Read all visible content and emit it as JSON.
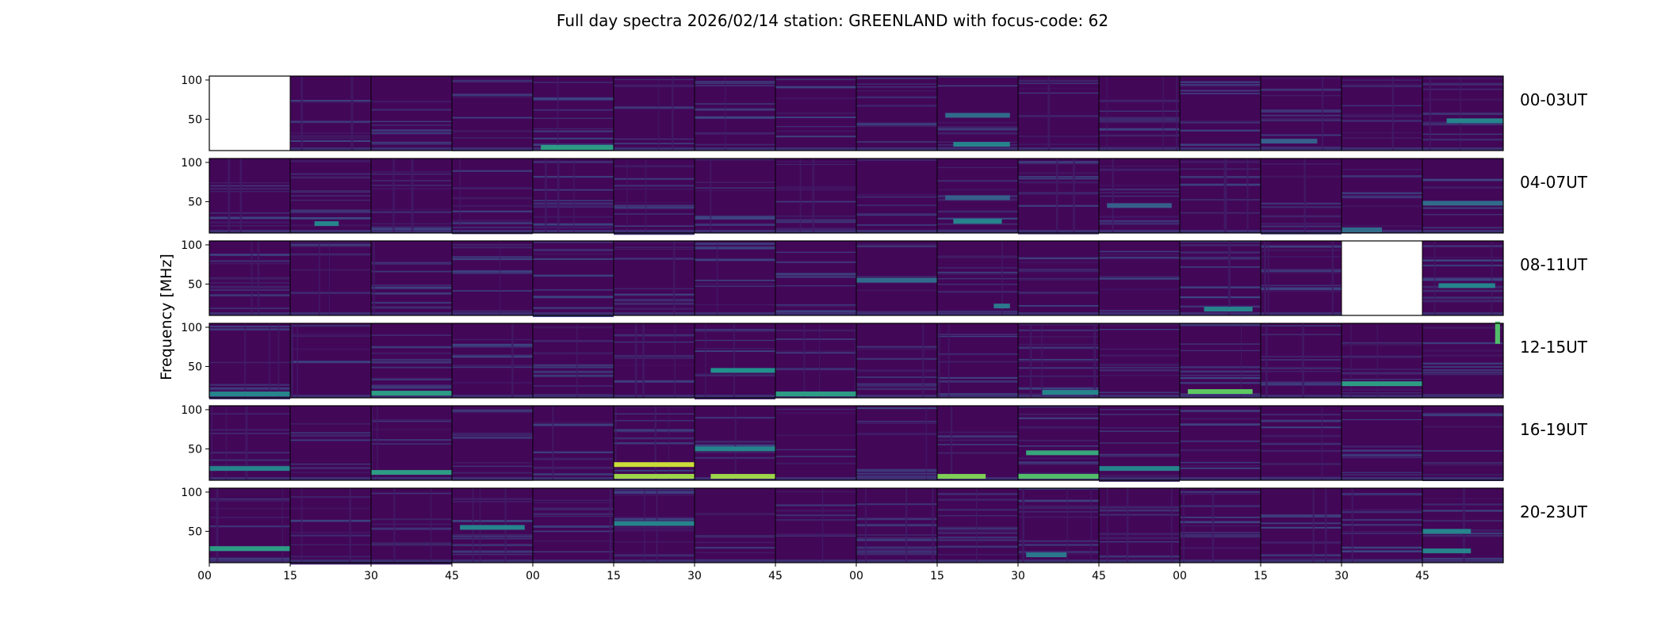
{
  "chart_data": {
    "type": "heatmap",
    "title": "Full day spectra 2026/02/14 station: GREENLAND with focus-code: 62",
    "ylabel": "Frequency [MHz]",
    "ylim": [
      10,
      105
    ],
    "yticks": [
      50,
      100
    ],
    "ytick_labels": [
      "50",
      "100"
    ],
    "xtick_labels": [
      "00",
      "15",
      "30",
      "45",
      "00",
      "15",
      "30",
      "45",
      "00",
      "15",
      "30",
      "45",
      "00",
      "15",
      "30",
      "45"
    ],
    "panels_per_row": 16,
    "minutes_per_panel": 15,
    "colormap": [
      "#440154",
      "#3b528b",
      "#21918c",
      "#5ec962",
      "#fde725"
    ],
    "rows": [
      {
        "label": "00-03UT",
        "empty_panels": [
          0
        ],
        "features": [
          {
            "panel": 4,
            "freq": 14,
            "intensity": 0.55,
            "span": [
              0.1,
              1.0
            ]
          },
          {
            "panel": 9,
            "freq": 18,
            "intensity": 0.45,
            "span": [
              0.2,
              0.9
            ]
          },
          {
            "panel": 9,
            "freq": 55,
            "intensity": 0.35,
            "span": [
              0.1,
              0.9
            ]
          },
          {
            "panel": 13,
            "freq": 22,
            "intensity": 0.3,
            "span": [
              0.0,
              0.7
            ]
          },
          {
            "panel": 15,
            "freq": 48,
            "intensity": 0.45,
            "span": [
              0.3,
              1.0
            ]
          }
        ]
      },
      {
        "label": "04-07UT",
        "empty_panels": [],
        "features": [
          {
            "panel": 1,
            "freq": 22,
            "intensity": 0.45,
            "span": [
              0.3,
              0.6
            ]
          },
          {
            "panel": 9,
            "freq": 25,
            "intensity": 0.45,
            "span": [
              0.2,
              0.8
            ]
          },
          {
            "panel": 9,
            "freq": 55,
            "intensity": 0.3,
            "span": [
              0.1,
              0.9
            ]
          },
          {
            "panel": 11,
            "freq": 45,
            "intensity": 0.3,
            "span": [
              0.1,
              0.9
            ]
          },
          {
            "panel": 15,
            "freq": 48,
            "intensity": 0.35,
            "span": [
              0.0,
              1.0
            ]
          },
          {
            "panel": 14,
            "freq": 14,
            "intensity": 0.35,
            "span": [
              0.0,
              0.5
            ]
          }
        ]
      },
      {
        "label": "08-11UT",
        "empty_panels": [
          14
        ],
        "features": [
          {
            "panel": 8,
            "freq": 55,
            "intensity": 0.35,
            "span": [
              0.0,
              1.0
            ]
          },
          {
            "panel": 9,
            "freq": 22,
            "intensity": 0.4,
            "span": [
              0.7,
              0.9
            ]
          },
          {
            "panel": 12,
            "freq": 18,
            "intensity": 0.45,
            "span": [
              0.3,
              0.9
            ]
          },
          {
            "panel": 15,
            "freq": 48,
            "intensity": 0.45,
            "span": [
              0.2,
              0.9
            ]
          }
        ]
      },
      {
        "label": "12-15UT",
        "empty_panels": [],
        "features": [
          {
            "panel": 0,
            "freq": 15,
            "intensity": 0.45,
            "span": [
              0.0,
              1.0
            ]
          },
          {
            "panel": 2,
            "freq": 16,
            "intensity": 0.55,
            "span": [
              0.0,
              1.0
            ]
          },
          {
            "panel": 6,
            "freq": 45,
            "intensity": 0.5,
            "span": [
              0.2,
              1.0
            ]
          },
          {
            "panel": 7,
            "freq": 15,
            "intensity": 0.55,
            "span": [
              0.0,
              1.0
            ]
          },
          {
            "panel": 10,
            "freq": 17,
            "intensity": 0.45,
            "span": [
              0.3,
              1.0
            ]
          },
          {
            "panel": 12,
            "freq": 18,
            "intensity": 0.75,
            "span": [
              0.1,
              0.9
            ]
          },
          {
            "panel": 14,
            "freq": 28,
            "intensity": 0.55,
            "span": [
              0.0,
              1.0
            ]
          },
          {
            "panel": 15,
            "freq": 85,
            "intensity": 0.7,
            "span": [
              0.9,
              0.96
            ]
          }
        ]
      },
      {
        "label": "16-19UT",
        "empty_panels": [],
        "features": [
          {
            "panel": 0,
            "freq": 25,
            "intensity": 0.45,
            "span": [
              0.0,
              1.0
            ]
          },
          {
            "panel": 2,
            "freq": 20,
            "intensity": 0.55,
            "span": [
              0.0,
              1.0
            ]
          },
          {
            "panel": 5,
            "freq": 30,
            "intensity": 0.92,
            "span": [
              0.0,
              1.0
            ]
          },
          {
            "panel": 5,
            "freq": 15,
            "intensity": 0.85,
            "span": [
              0.0,
              1.0
            ]
          },
          {
            "panel": 6,
            "freq": 15,
            "intensity": 0.85,
            "span": [
              0.2,
              1.0
            ]
          },
          {
            "panel": 6,
            "freq": 50,
            "intensity": 0.45,
            "span": [
              0.0,
              1.0
            ]
          },
          {
            "panel": 9,
            "freq": 15,
            "intensity": 0.8,
            "span": [
              0.0,
              0.6
            ]
          },
          {
            "panel": 10,
            "freq": 45,
            "intensity": 0.6,
            "span": [
              0.1,
              1.0
            ]
          },
          {
            "panel": 10,
            "freq": 15,
            "intensity": 0.7,
            "span": [
              0.0,
              1.0
            ]
          },
          {
            "panel": 11,
            "freq": 25,
            "intensity": 0.45,
            "span": [
              0.0,
              1.0
            ]
          }
        ]
      },
      {
        "label": "20-23UT",
        "empty_panels": [],
        "features": [
          {
            "panel": 0,
            "freq": 28,
            "intensity": 0.55,
            "span": [
              0.0,
              1.0
            ]
          },
          {
            "panel": 3,
            "freq": 55,
            "intensity": 0.45,
            "span": [
              0.1,
              0.9
            ]
          },
          {
            "panel": 5,
            "freq": 60,
            "intensity": 0.45,
            "span": [
              0.0,
              1.0
            ]
          },
          {
            "panel": 10,
            "freq": 20,
            "intensity": 0.4,
            "span": [
              0.1,
              0.6
            ]
          },
          {
            "panel": 15,
            "freq": 25,
            "intensity": 0.45,
            "span": [
              0.0,
              0.6
            ]
          },
          {
            "panel": 15,
            "freq": 50,
            "intensity": 0.45,
            "span": [
              0.0,
              0.6
            ]
          }
        ]
      }
    ]
  }
}
